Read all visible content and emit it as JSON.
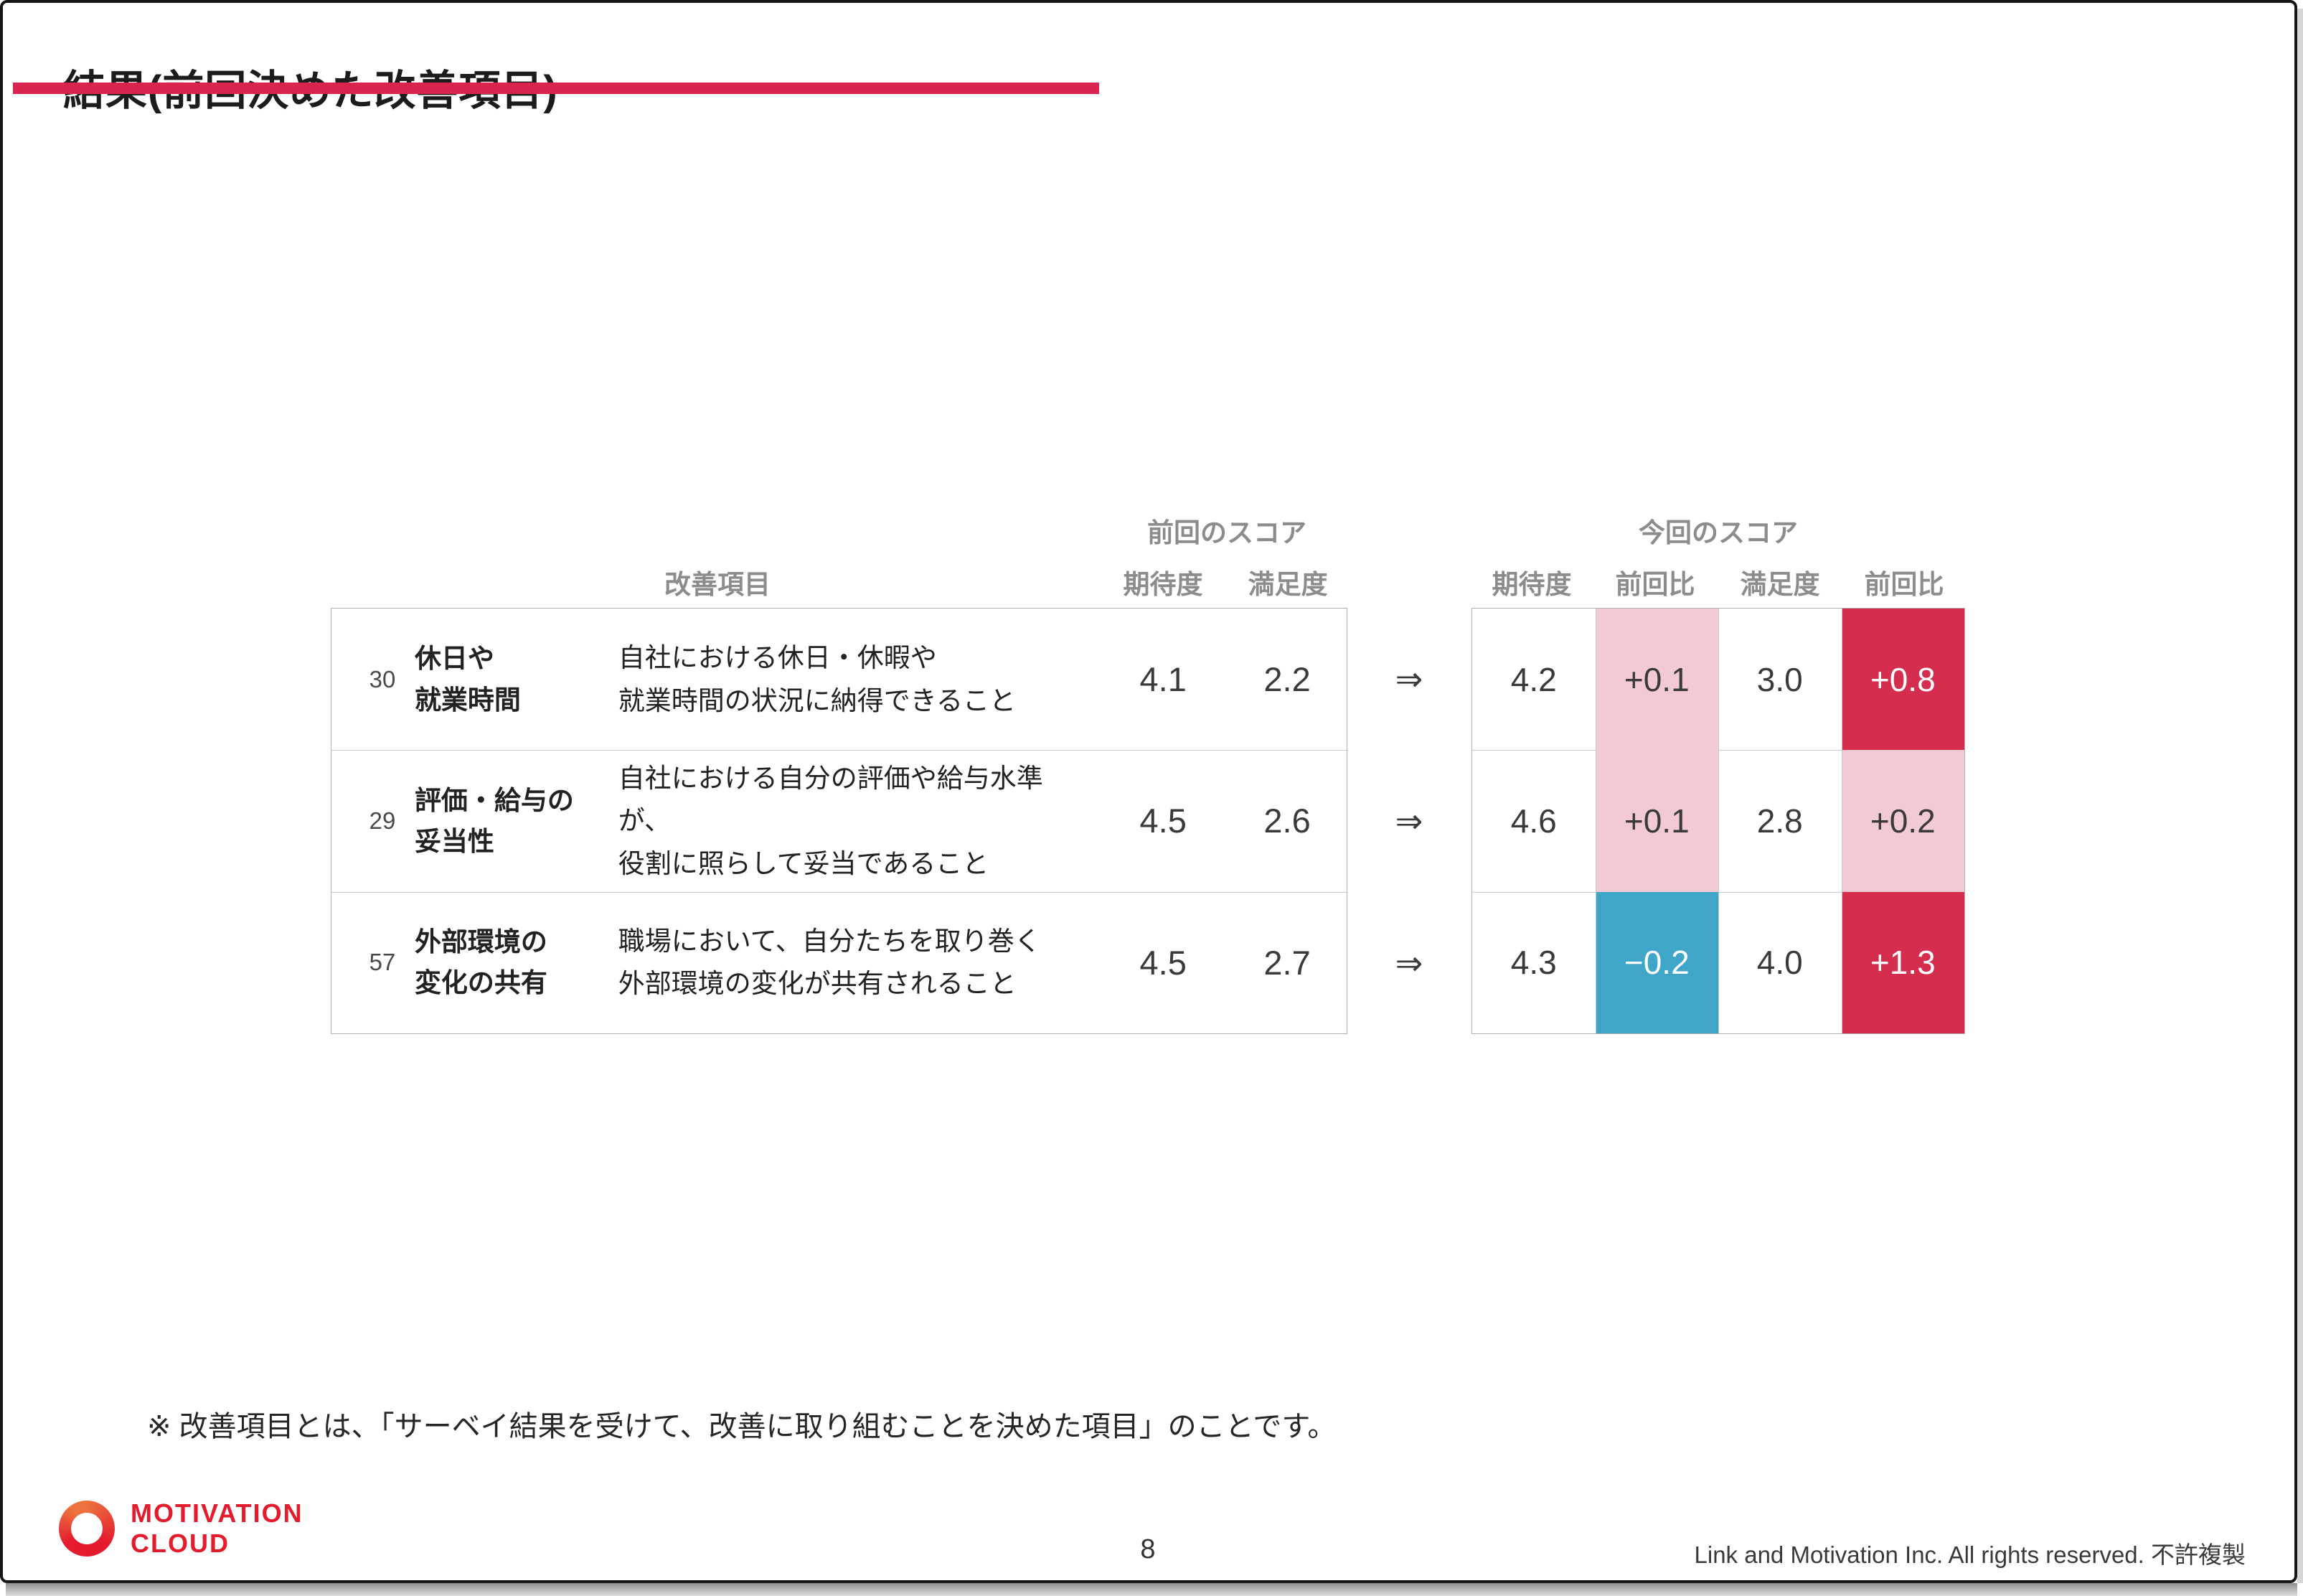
{
  "slide": {
    "title": "結果(前回決めた改善項目)",
    "footnote": "※ 改善項目とは、「サーベイ結果を受けて、改善に取り組むことを決めた項目」のことです。",
    "page_number": "8",
    "copyright": "Link and Motivation Inc. All rights reserved. 不許複製"
  },
  "logo": {
    "line1": "MOTIVATION",
    "line2": "CLOUD"
  },
  "table": {
    "group_headers": {
      "previous": "前回のスコア",
      "current": "今回のスコア"
    },
    "column_headers": {
      "item": "改善項目",
      "expectation": "期待度",
      "satisfaction": "満足度",
      "vs_previous": "前回比"
    },
    "arrow": "⇒",
    "rows": [
      {
        "id": "30",
        "name": "休日や\n就業時間",
        "description": "自社における休日・休暇や\n就業時間の状況に納得できること",
        "prev_expectation": "4.1",
        "prev_satisfaction": "2.2",
        "curr_expectation": "4.2",
        "exp_diff": "+0.1",
        "exp_diff_color": "pink",
        "curr_satisfaction": "3.0",
        "sat_diff": "+0.8",
        "sat_diff_color": "strong"
      },
      {
        "id": "29",
        "name": "評価・給与の\n妥当性",
        "description": "自社における自分の評価や給与水準が、\n役割に照らして妥当であること",
        "prev_expectation": "4.5",
        "prev_satisfaction": "2.6",
        "curr_expectation": "4.6",
        "exp_diff": "+0.1",
        "exp_diff_color": "pink",
        "curr_satisfaction": "2.8",
        "sat_diff": "+0.2",
        "sat_diff_color": "pink"
      },
      {
        "id": "57",
        "name": "外部環境の\n変化の共有",
        "description": "職場において、自分たちを取り巻く\n外部環境の変化が共有されること",
        "prev_expectation": "4.5",
        "prev_satisfaction": "2.7",
        "curr_expectation": "4.3",
        "exp_diff": "−0.2",
        "exp_diff_color": "blue",
        "curr_satisfaction": "4.0",
        "sat_diff": "+1.3",
        "sat_diff_color": "strong"
      }
    ]
  },
  "colors": {
    "accent": "#d8244e",
    "strong": "#d52d4d",
    "pink": "#f2cad3",
    "blue": "#3fa5c9",
    "logo_red": "#e41b2c",
    "logo_orange": "#ec7340"
  }
}
